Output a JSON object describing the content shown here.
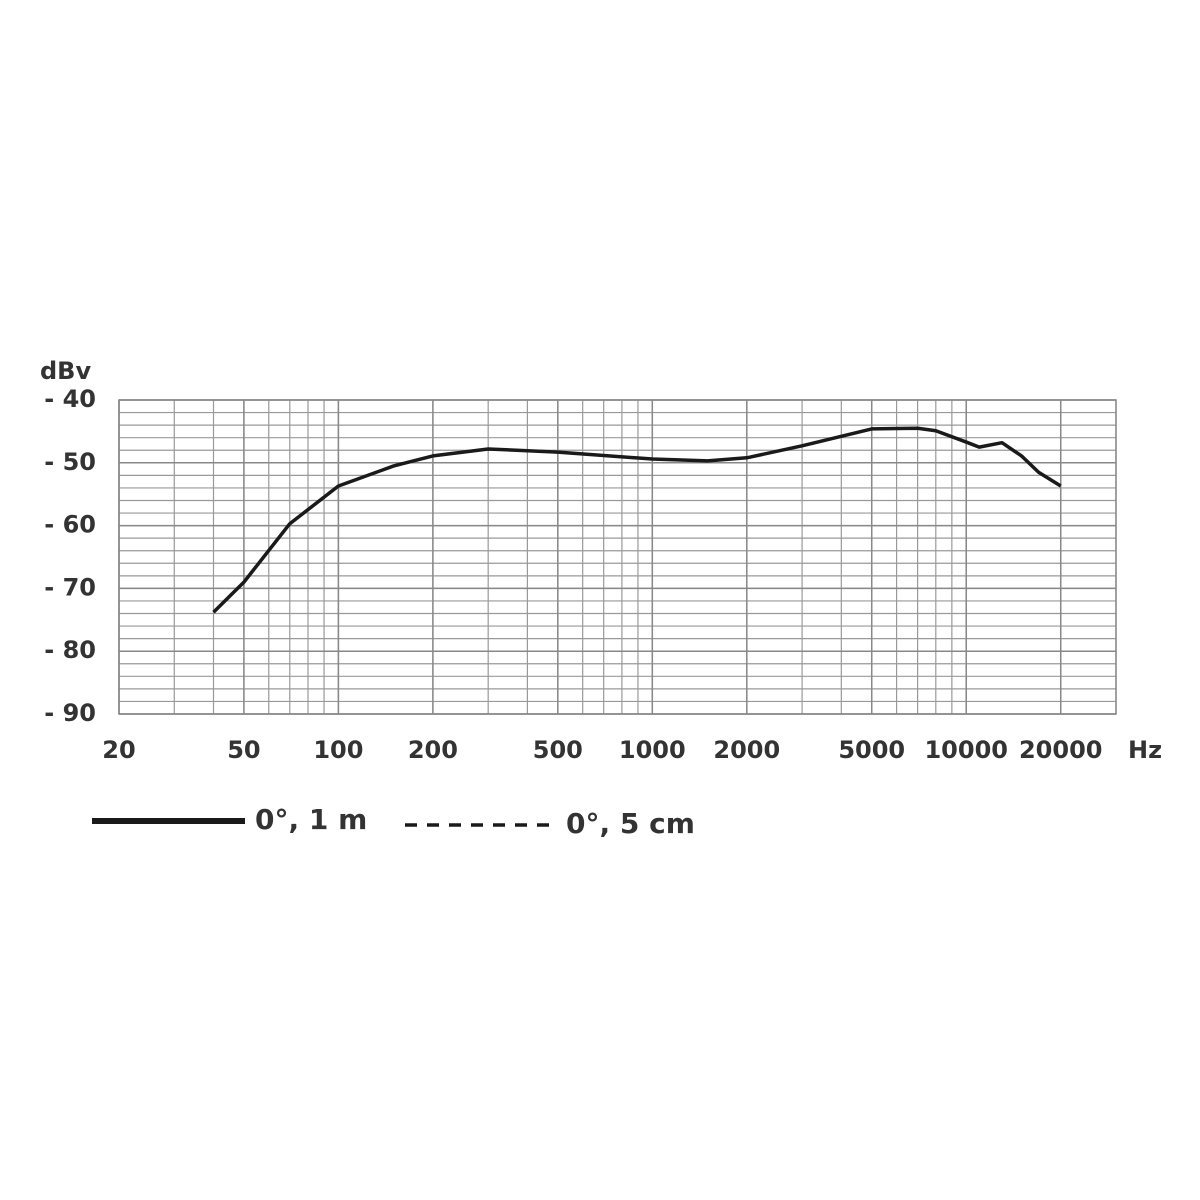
{
  "chart_data": {
    "type": "line",
    "y_label": "dBv",
    "x_label": "Hz",
    "log_x": true,
    "grid": true,
    "xlim": [
      20,
      30000
    ],
    "ylim": [
      -90,
      -40
    ],
    "xticks": [
      20,
      50,
      100,
      200,
      500,
      1000,
      2000,
      5000,
      10000,
      20000
    ],
    "yticks": [
      {
        "value": -40,
        "label": "- 40"
      },
      {
        "value": -50,
        "label": "- 50"
      },
      {
        "value": -60,
        "label": "- 60"
      },
      {
        "value": -70,
        "label": "- 70"
      },
      {
        "value": -80,
        "label": "- 80"
      },
      {
        "value": -90,
        "label": "- 90"
      }
    ],
    "series": [
      {
        "name": "0°, 1 m",
        "color": "#1a1a1a",
        "dash": false,
        "x": [
          40,
          50,
          70,
          100,
          150,
          200,
          300,
          500,
          1000,
          1500,
          2000,
          3000,
          5000,
          7000,
          8000,
          10000,
          11000,
          13000,
          15000,
          17000,
          20000
        ],
        "values": [
          -73.8,
          -69,
          -59.7,
          -53.7,
          -50.5,
          -48.9,
          -47.8,
          -48.3,
          -49.4,
          -49.7,
          -49.2,
          -47.3,
          -44.6,
          -44.5,
          -44.9,
          -46.7,
          -47.5,
          -46.8,
          -48.9,
          -51.5,
          -53.7
        ]
      },
      {
        "name": "0°, 5 cm",
        "color": "#1a1a1a",
        "dash": true,
        "x": [],
        "values": []
      }
    ]
  }
}
